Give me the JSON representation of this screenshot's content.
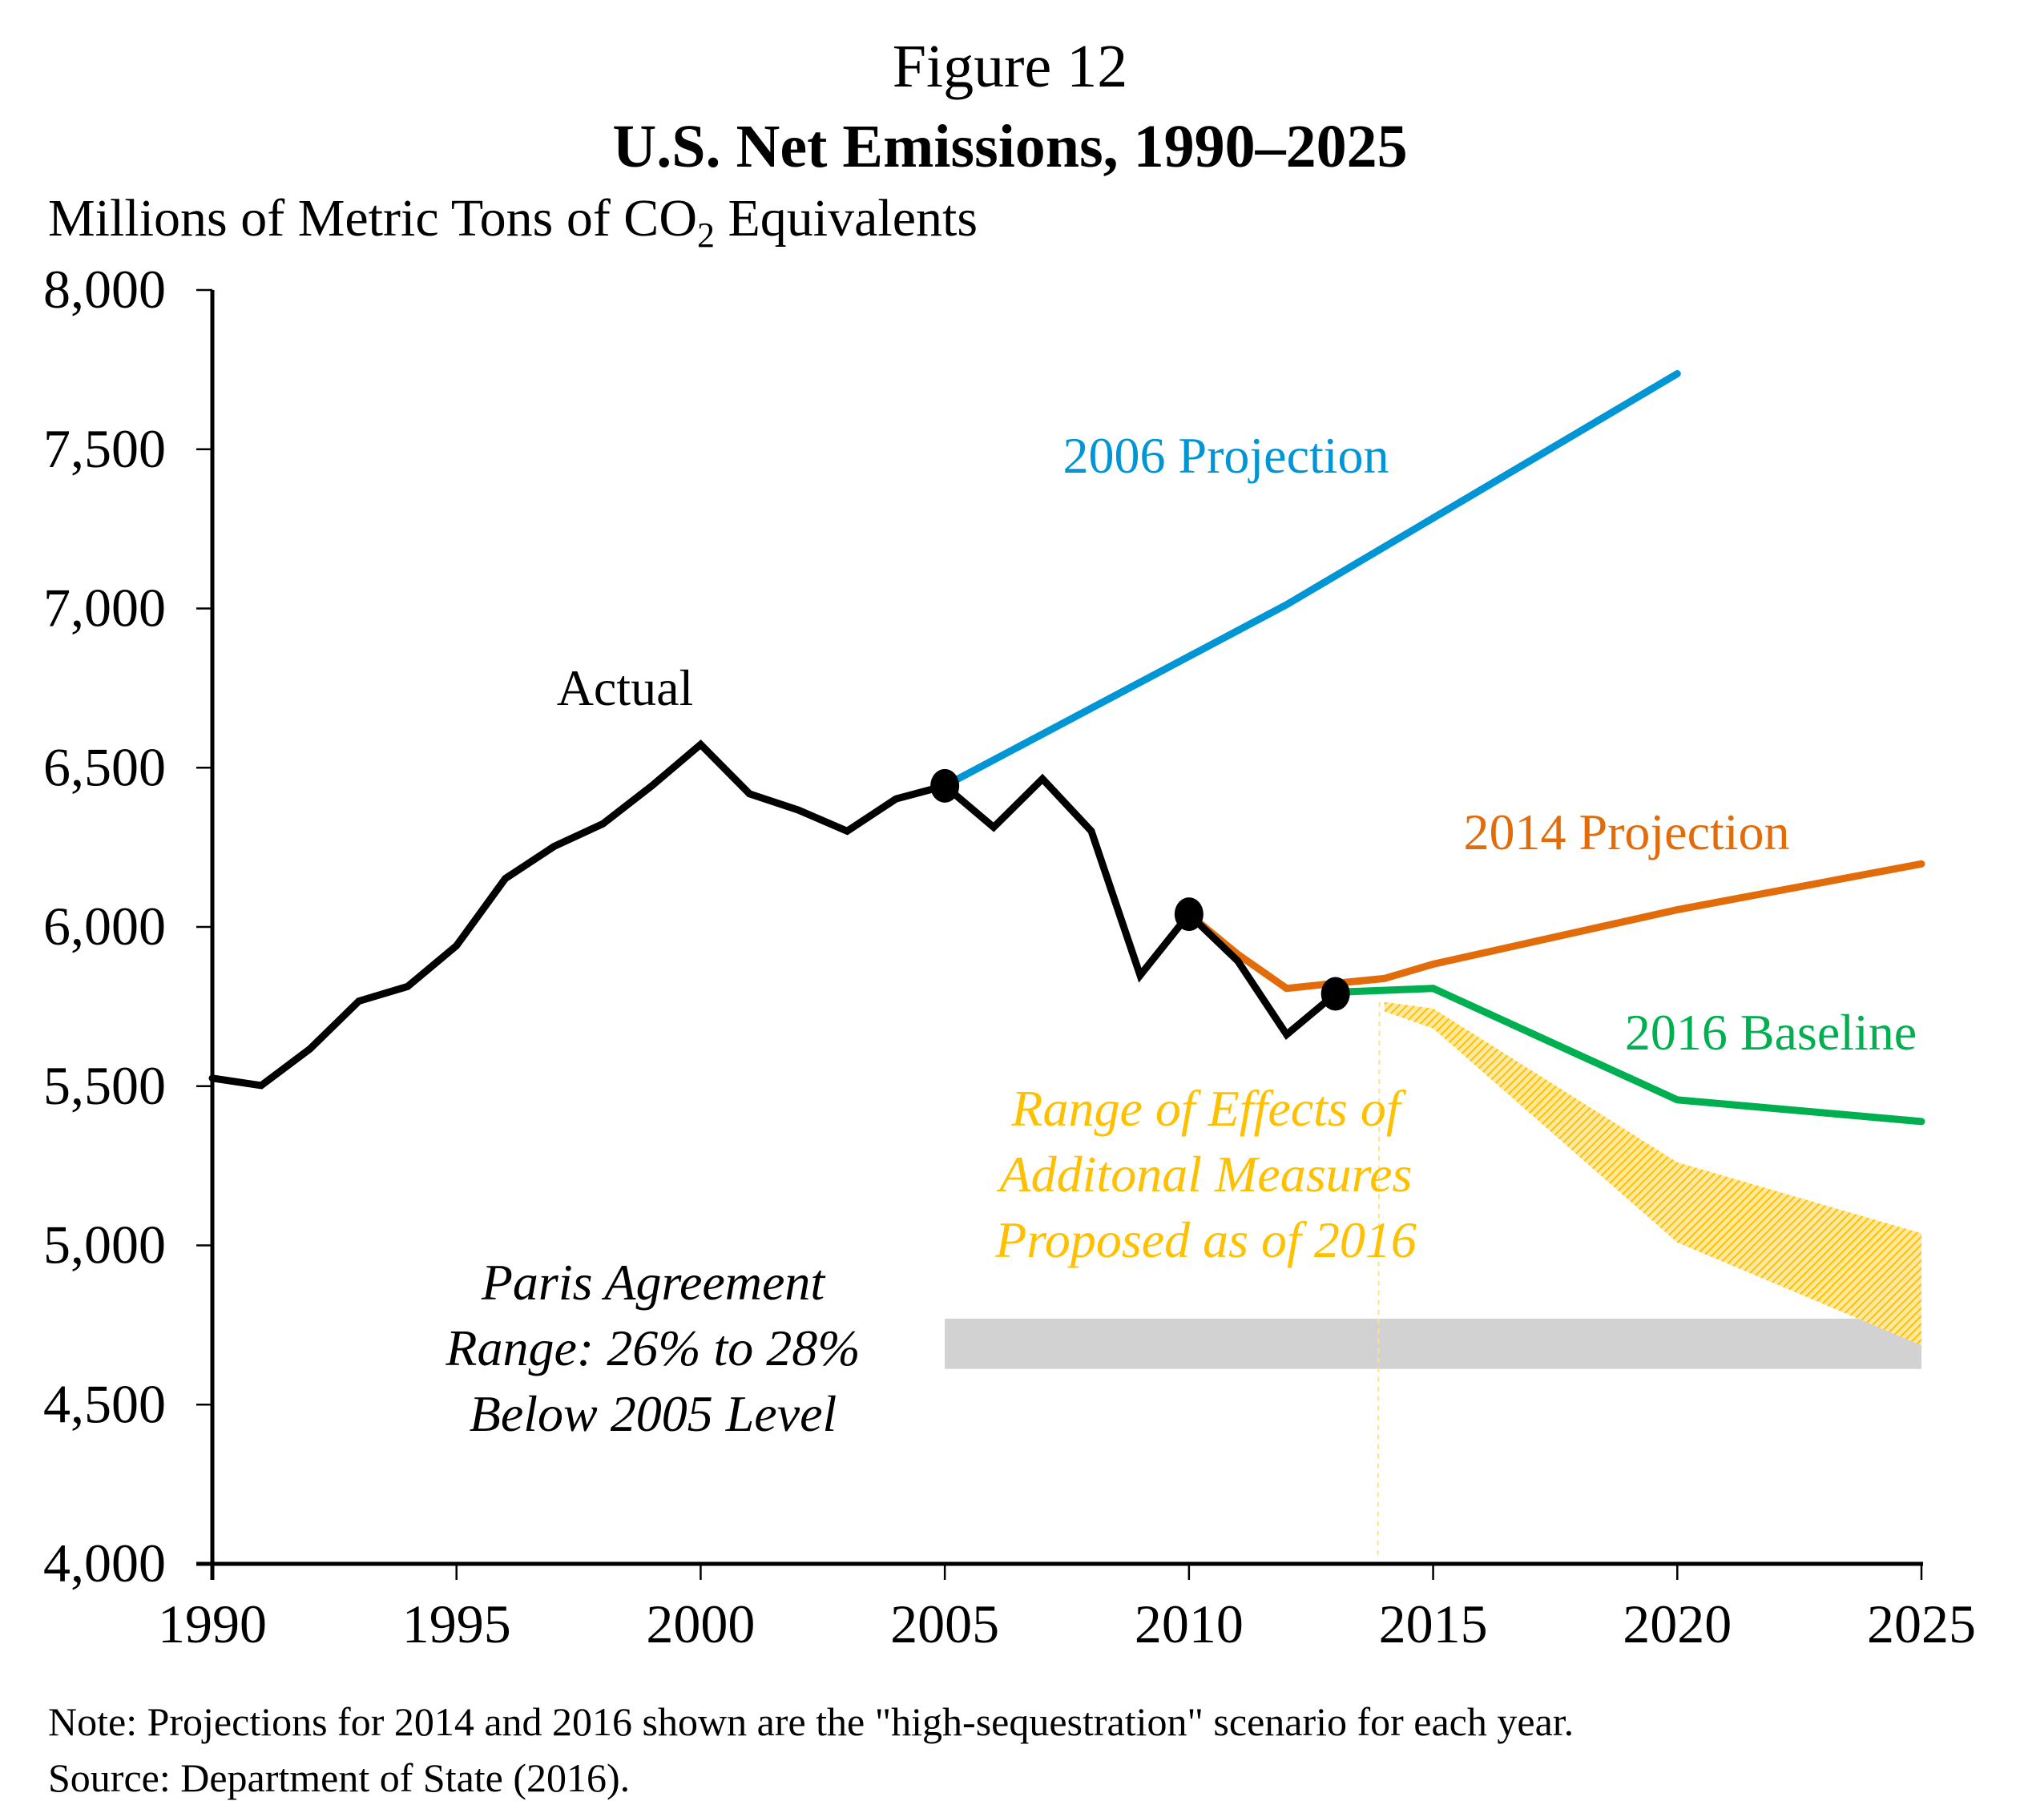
{
  "figure": {
    "number": "Figure 12",
    "title": "U.S. Net Emissions, 1990–2025",
    "ylabel_main": "Millions of Metric Tons of CO",
    "ylabel_sub": "2",
    "ylabel_tail": " Equivalents",
    "note": "Note: Projections for 2014 and 2016 shown are the \"high-sequestration\" scenario for each year.",
    "source": "Source: Department of State (2016)."
  },
  "chart_data": {
    "type": "line",
    "title": "U.S. Net Emissions, 1990–2025",
    "subtitle": "Figure 12",
    "xlabel": "",
    "ylabel": "Millions of Metric Tons of CO2 Equivalents",
    "xlim": [
      1990,
      2025
    ],
    "ylim": [
      4000,
      8000
    ],
    "grid": false,
    "x_ticks": [
      1990,
      1995,
      2000,
      2005,
      2010,
      2015,
      2020,
      2025
    ],
    "x_tick_labels": [
      "1990",
      "1995",
      "2000",
      "2005",
      "2010",
      "2015",
      "2020",
      "2025"
    ],
    "y_ticks": [
      4000,
      4500,
      5000,
      5500,
      6000,
      6500,
      7000,
      7500,
      8000
    ],
    "y_tick_labels": [
      "4,000",
      "4,500",
      "5,000",
      "5,500",
      "6,000",
      "6,500",
      "7,000",
      "7,500",
      "8,000"
    ],
    "series": [
      {
        "name": "Actual",
        "color": "#000000",
        "x": [
          1990,
          1991,
          1992,
          1993,
          1994,
          1995,
          1996,
          1997,
          1998,
          1999,
          2000,
          2001,
          2002,
          2003,
          2004,
          2005,
          2006,
          2007,
          2008,
          2009,
          2010,
          2011,
          2012,
          2013
        ],
        "values": [
          5525,
          5502,
          5617,
          5767,
          5813,
          5941,
          6152,
          6253,
          6324,
          6443,
          6573,
          6418,
          6367,
          6301,
          6402,
          6443,
          6313,
          6465,
          6301,
          5848,
          6040,
          5893,
          5662,
          5790
        ],
        "markers": [
          {
            "x": 2005,
            "value": 6443
          },
          {
            "x": 2010,
            "value": 6040
          },
          {
            "x": 2013,
            "value": 5790
          }
        ]
      },
      {
        "name": "2006 Projection",
        "color": "#0096D6",
        "x": [
          2005,
          2012,
          2020
        ],
        "values": [
          6443,
          7012,
          7737
        ]
      },
      {
        "name": "2014 Projection",
        "color": "#E36C0A",
        "x": [
          2010,
          2011,
          2012,
          2013,
          2014,
          2015,
          2020,
          2025
        ],
        "values": [
          6040,
          5914,
          5807,
          5823,
          5838,
          5883,
          6054,
          6198
        ]
      },
      {
        "name": "2016 Baseline",
        "color": "#00B050",
        "x": [
          2013,
          2015,
          2020,
          2025
        ],
        "values": [
          5795,
          5807,
          5457,
          5389
        ]
      }
    ],
    "bands": [
      {
        "name": "Range of Effects of Additonal Measures Proposed as of 2016",
        "color": "#FFC000",
        "pattern": "hatched",
        "x": [
          2014,
          2015,
          2020,
          2025
        ],
        "upper": [
          5764,
          5744,
          5261,
          5038
        ],
        "lower": [
          5735,
          5681,
          5009,
          4686
        ]
      },
      {
        "name": "Paris Agreement Range: 26% to 28% Below 2005 Level",
        "color": "#D0D0D0",
        "x": [
          2005,
          2025
        ],
        "upper": 4770,
        "lower": 4612
      }
    ],
    "annotations": {
      "actual": "Actual",
      "proj2006": "2006 Projection",
      "proj2014": "2014 Projection",
      "baseline2016": "2016 Baseline",
      "range_lines": [
        "Range of Effects of",
        "Additonal Measures",
        "Proposed as of 2016"
      ],
      "paris_lines": [
        "Paris Agreement",
        "Range: 26% to 28%",
        "Below 2005 Level"
      ]
    }
  }
}
